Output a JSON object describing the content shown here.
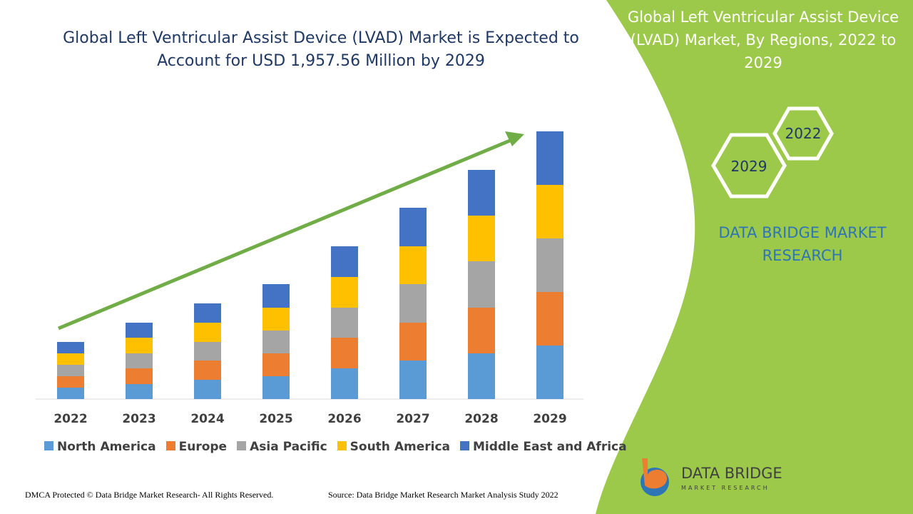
{
  "chart_data": {
    "type": "bar",
    "stacked": true,
    "title": "Global Left Ventricular Assist Device (LVAD) Market is Expected to Account for USD 1,957.56 Million by 2029",
    "categories": [
      "2022",
      "2023",
      "2024",
      "2025",
      "2026",
      "2027",
      "2028",
      "2029"
    ],
    "series": [
      {
        "name": "North America",
        "color": "#5b9bd5",
        "values": [
          16,
          21,
          27,
          32,
          43,
          54,
          64,
          75
        ]
      },
      {
        "name": "Europe",
        "color": "#ed7d31",
        "values": [
          16,
          22,
          27,
          32,
          43,
          53,
          64,
          75
        ]
      },
      {
        "name": "Asia Pacific",
        "color": "#a5a5a5",
        "values": [
          16,
          21,
          26,
          32,
          42,
          54,
          65,
          75
        ]
      },
      {
        "name": "South America",
        "color": "#ffc000",
        "values": [
          16,
          22,
          27,
          32,
          43,
          53,
          64,
          75
        ]
      },
      {
        "name": "Middle East and Africa",
        "color": "#4472c4",
        "values": [
          16,
          21,
          27,
          33,
          43,
          54,
          64,
          75
        ]
      }
    ],
    "ylim": [
      0,
      375
    ]
  },
  "panel": {
    "title": "Global Left Ventricular Assist Device (LVAD) Market, By Regions, 2022 to 2029",
    "hexagons": [
      "2022",
      "2029"
    ],
    "brand": "DATA BRIDGE MARKET RESEARCH"
  },
  "logo": {
    "name": "DATA BRIDGE",
    "tagline": "MARKET RESEARCH"
  },
  "footer": {
    "dmca": "DMCA Protected © Data Bridge Market Research- All Rights Reserved.",
    "source": "Source: Data Bridge Market Research Market Analysis Study 2022"
  }
}
